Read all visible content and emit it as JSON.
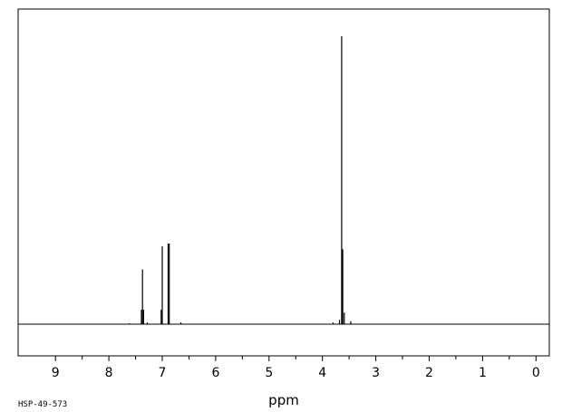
{
  "chart_data": {
    "type": "line",
    "title": "",
    "xlabel": "ppm",
    "ylabel": "",
    "xlim": [
      9.7,
      -0.25
    ],
    "x_reversed": true,
    "ylim": [
      0,
      1
    ],
    "grid": false,
    "tick_labels": [
      "9",
      "8",
      "7",
      "6",
      "5",
      "4",
      "3",
      "2",
      "1",
      "0"
    ],
    "tick_values": [
      9,
      8,
      7,
      6,
      5,
      4,
      3,
      2,
      1,
      0
    ],
    "minor_tick_step": 0.5,
    "peaks": [
      {
        "ppm": 7.62,
        "intensity": 0.003
      },
      {
        "ppm": 7.39,
        "intensity": 0.05
      },
      {
        "ppm": 7.37,
        "intensity": 0.19
      },
      {
        "ppm": 7.35,
        "intensity": 0.05
      },
      {
        "ppm": 7.28,
        "intensity": 0.006
      },
      {
        "ppm": 7.02,
        "intensity": 0.05
      },
      {
        "ppm": 7.0,
        "intensity": 0.27
      },
      {
        "ppm": 6.89,
        "intensity": 0.28
      },
      {
        "ppm": 6.87,
        "intensity": 0.28
      },
      {
        "ppm": 6.65,
        "intensity": 0.006
      },
      {
        "ppm": 3.68,
        "intensity": 0.015
      },
      {
        "ppm": 3.64,
        "intensity": 1.0
      },
      {
        "ppm": 3.62,
        "intensity": 0.26
      },
      {
        "ppm": 3.59,
        "intensity": 0.04
      },
      {
        "ppm": 3.47,
        "intensity": 0.01
      },
      {
        "ppm": 3.8,
        "intensity": 0.006
      }
    ]
  },
  "footer_code": "HSP-49-573"
}
